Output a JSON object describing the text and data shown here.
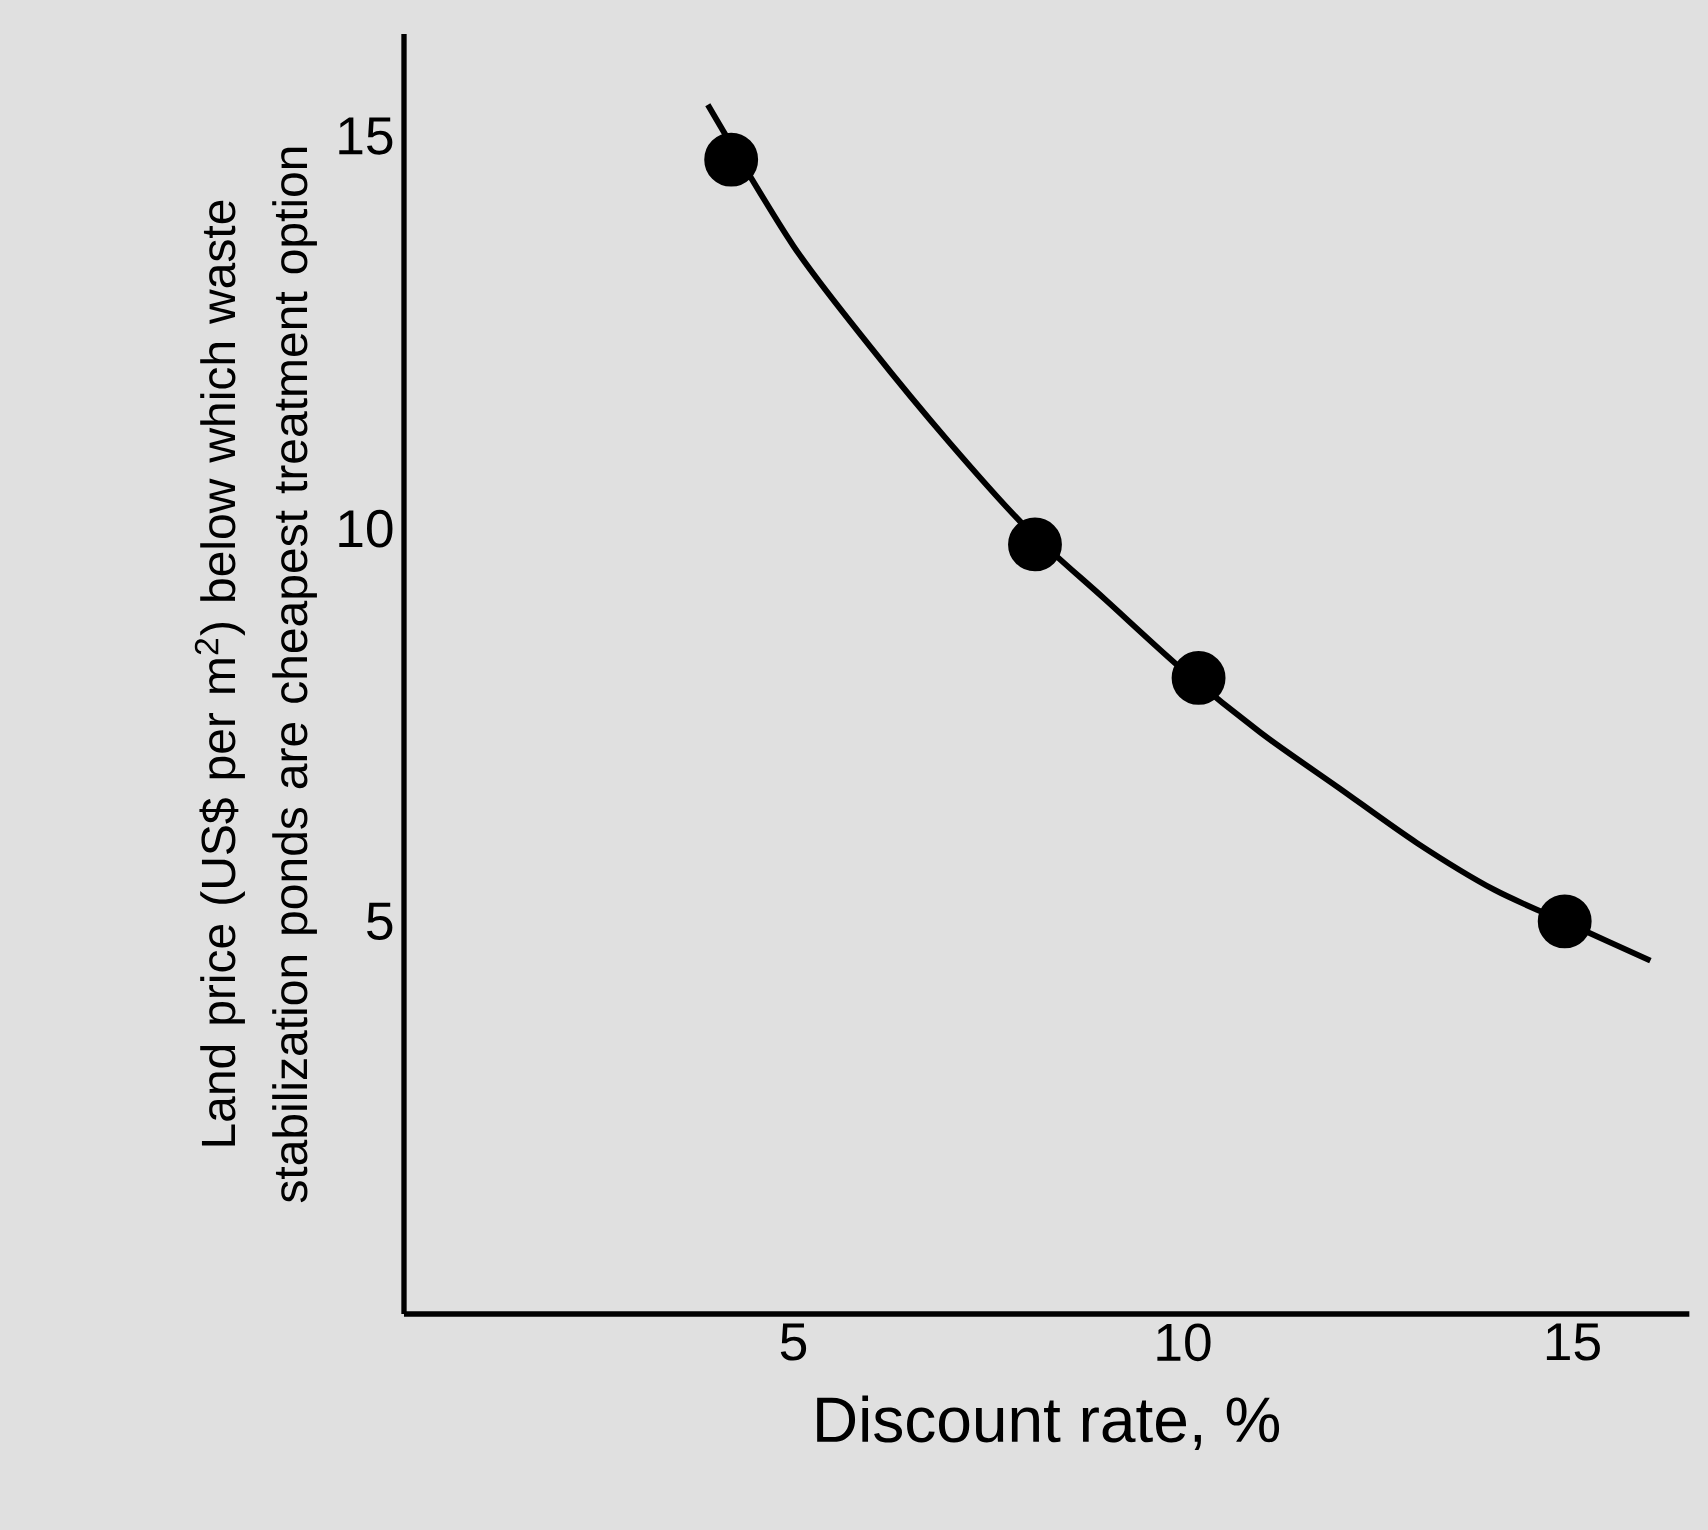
{
  "chart_data": {
    "type": "scatter",
    "xlabel": "Discount rate, %",
    "ylabel": "Land price (US$ per m$^{2}$) below which waste stabilization ponds are cheapest treatment option",
    "xlim": [
      0,
      16.5
    ],
    "ylim": [
      0,
      16.3
    ],
    "xticks": [
      5,
      10,
      15
    ],
    "yticks": [
      5,
      10,
      15
    ],
    "marker": "circle",
    "series": [
      {
        "color": "#000000",
        "x": [
          4.2,
          8.1,
          10.2,
          14.9
        ],
        "values": [
          14.7,
          9.8,
          8.1,
          5.0
        ]
      },
      {
        "type": "line",
        "color": "#000000",
        "marker": "none",
        "line_style": "solid",
        "x": [
          3.9,
          5,
          6,
          7,
          8,
          9,
          10,
          11,
          12,
          13,
          14,
          15,
          16
        ],
        "values": [
          15.4,
          13.6,
          12.3,
          11.1,
          10.0,
          9.1,
          8.2,
          7.4,
          6.7,
          6.0,
          5.4,
          4.95,
          4.5
        ]
      }
    ]
  }
}
